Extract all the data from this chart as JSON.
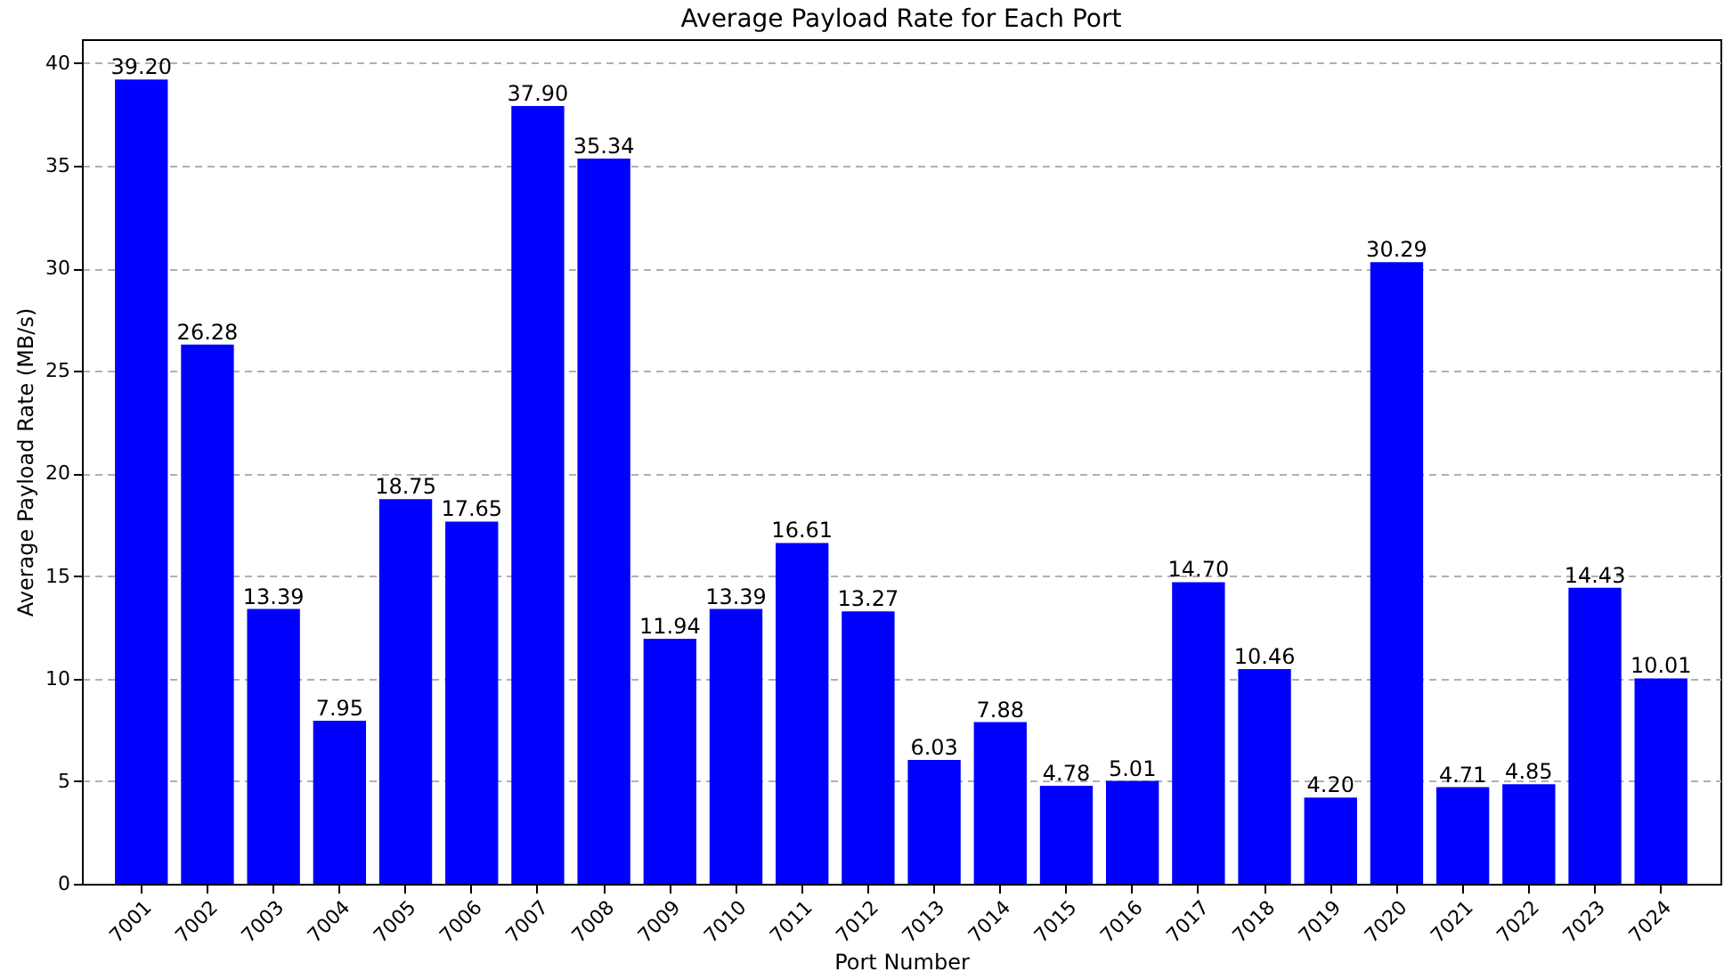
{
  "chart_data": {
    "type": "bar",
    "title": "Average Payload Rate for Each Port",
    "xlabel": "Port Number",
    "ylabel": "Average Payload Rate (MB/s)",
    "categories": [
      "7001",
      "7002",
      "7003",
      "7004",
      "7005",
      "7006",
      "7007",
      "7008",
      "7009",
      "7010",
      "7011",
      "7012",
      "7013",
      "7014",
      "7015",
      "7016",
      "7017",
      "7018",
      "7019",
      "7020",
      "7021",
      "7022",
      "7023",
      "7024"
    ],
    "values": [
      39.2,
      26.28,
      13.39,
      7.95,
      18.75,
      17.65,
      37.9,
      35.34,
      11.94,
      13.39,
      16.61,
      13.27,
      6.03,
      7.88,
      4.78,
      5.01,
      14.7,
      10.46,
      4.2,
      30.29,
      4.71,
      4.85,
      14.43,
      10.01
    ],
    "value_labels": [
      "39.20",
      "26.28",
      "13.39",
      "7.95",
      "18.75",
      "17.65",
      "37.90",
      "35.34",
      "11.94",
      "13.39",
      "16.61",
      "13.27",
      "6.03",
      "7.88",
      "4.78",
      "5.01",
      "14.70",
      "10.46",
      "4.20",
      "30.29",
      "4.71",
      "4.85",
      "14.43",
      "10.01"
    ],
    "color": "#0000ff",
    "ylim": [
      0,
      41.16
    ],
    "yticks": [
      0,
      5,
      10,
      15,
      20,
      25,
      30,
      35,
      40
    ],
    "grid": "y"
  }
}
